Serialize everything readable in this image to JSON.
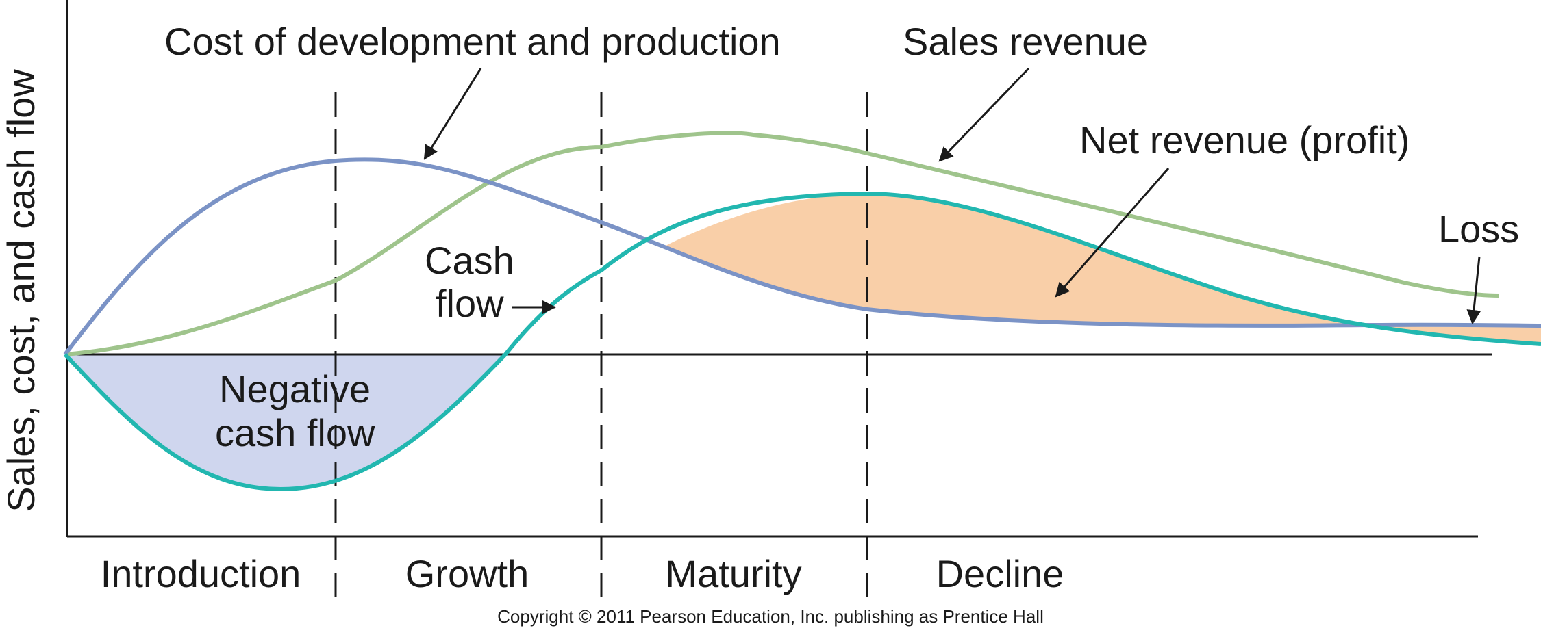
{
  "diagram": {
    "axis": {
      "y_label": "Sales, cost, and cash flow"
    },
    "stages": [
      "Introduction",
      "Growth",
      "Maturity",
      "Decline"
    ],
    "labels": {
      "cost": "Cost of development and production",
      "sales": "Sales revenue",
      "net_revenue": "Net revenue (profit)",
      "loss": "Loss",
      "cash_flow_line1": "Cash",
      "cash_flow_line2": "flow",
      "negative_line1": "Negative",
      "negative_line2": "cash flow"
    },
    "copyright": "Copyright © 2011 Pearson Education, Inc. publishing as Prentice Hall",
    "colors": {
      "cost_curve": "#7b93c6",
      "sales_curve": "#9fc48c",
      "cash_flow_curve": "#22b7b0",
      "negative_fill": "#cfd6ee",
      "profit_fill": "#f9cfa8",
      "axis": "#1a1a1a"
    }
  }
}
